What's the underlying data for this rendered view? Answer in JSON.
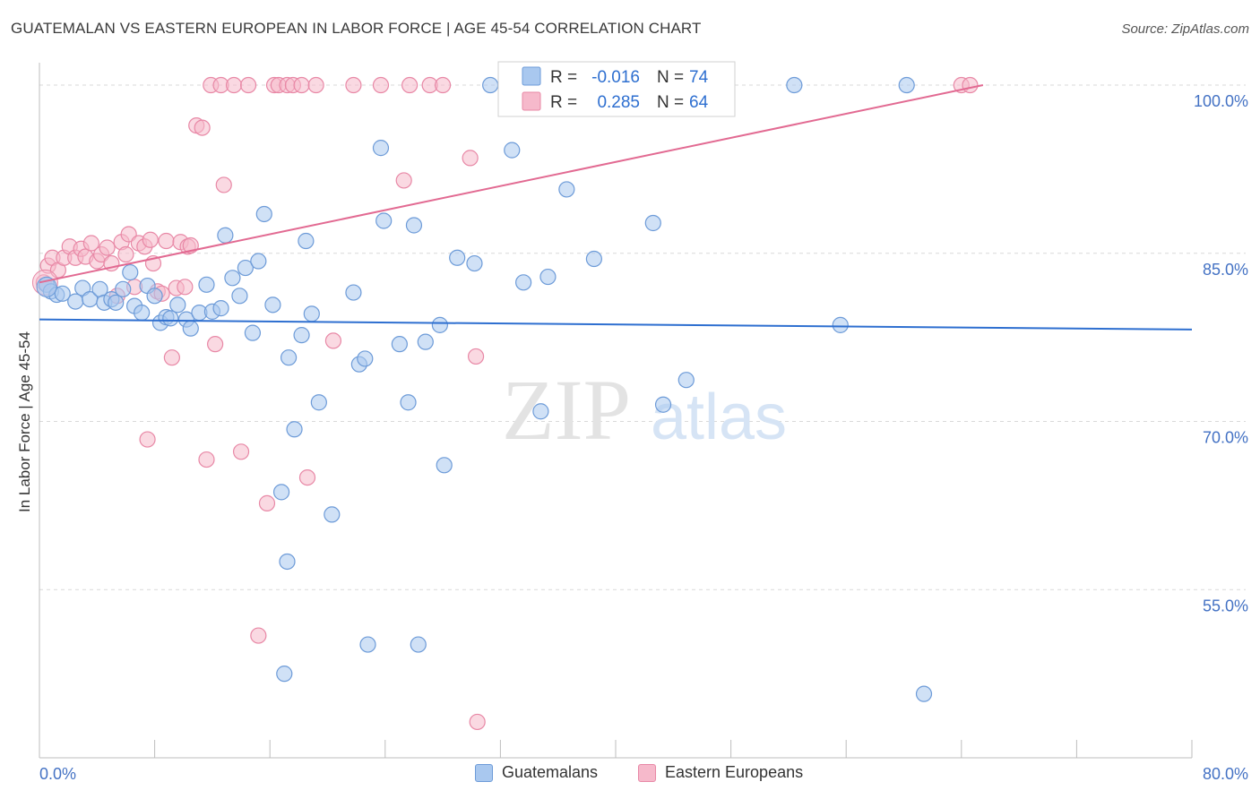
{
  "header": {
    "title": "GUATEMALAN VS EASTERN EUROPEAN IN LABOR FORCE | AGE 45-54 CORRELATION CHART",
    "source": "Source: ZipAtlas.com"
  },
  "watermark": {
    "zip": "ZIP",
    "atlas": "atlas"
  },
  "colors": {
    "blue_fill": "#a9c8ef",
    "blue_stroke": "#6d9bd8",
    "blue_line": "#2e6fd0",
    "pink_fill": "#f6b9cb",
    "pink_stroke": "#e888a6",
    "pink_line": "#e26a92",
    "axis_text": "#4472c4",
    "grid": "#d9d9d9"
  },
  "stats_legend": {
    "rows": [
      {
        "r_label": "R =",
        "r_value": "-0.016",
        "n_label": "N =",
        "n_value": "74"
      },
      {
        "r_label": "R =",
        "r_value": "0.285",
        "n_label": "N =",
        "n_value": "64"
      }
    ]
  },
  "chart_data": {
    "type": "scatter",
    "title": "GUATEMALAN VS EASTERN EUROPEAN IN LABOR FORCE | AGE 45-54 CORRELATION CHART",
    "xlabel": "",
    "ylabel": "In Labor Force | Age 45-54",
    "xlim": [
      0,
      80
    ],
    "ylim": [
      40,
      102
    ],
    "x_tick_labels": [
      {
        "value": 0,
        "label": "0.0%"
      },
      {
        "value": 80,
        "label": "80.0%"
      }
    ],
    "y_tick_labels": [
      {
        "value": 100,
        "label": "100.0%"
      },
      {
        "value": 85,
        "label": "85.0%"
      },
      {
        "value": 70,
        "label": "70.0%"
      },
      {
        "value": 55,
        "label": "55.0%"
      }
    ],
    "series": [
      {
        "name": "Guatemalans",
        "color": "blue",
        "trend": {
          "x": [
            0,
            80
          ],
          "y": [
            79.1,
            78.2
          ]
        },
        "points": [
          [
            0.5,
            82.2
          ],
          [
            0.8,
            81.6
          ],
          [
            1.2,
            81.3
          ],
          [
            1.6,
            81.4
          ],
          [
            2.5,
            80.7
          ],
          [
            3.0,
            81.9
          ],
          [
            3.5,
            80.9
          ],
          [
            4.2,
            81.8
          ],
          [
            4.5,
            80.6
          ],
          [
            5.0,
            80.9
          ],
          [
            5.3,
            80.6
          ],
          [
            5.8,
            81.8
          ],
          [
            6.3,
            83.3
          ],
          [
            6.6,
            80.3
          ],
          [
            7.1,
            79.7
          ],
          [
            7.5,
            82.1
          ],
          [
            8.0,
            81.2
          ],
          [
            8.4,
            78.8
          ],
          [
            8.8,
            79.3
          ],
          [
            9.1,
            79.2
          ],
          [
            9.6,
            80.4
          ],
          [
            10.2,
            79.1
          ],
          [
            10.5,
            78.3
          ],
          [
            11.1,
            79.7
          ],
          [
            11.6,
            82.2
          ],
          [
            12.0,
            79.8
          ],
          [
            12.6,
            80.1
          ],
          [
            12.9,
            86.6
          ],
          [
            13.4,
            82.8
          ],
          [
            13.9,
            81.2
          ],
          [
            14.3,
            83.7
          ],
          [
            14.8,
            77.9
          ],
          [
            15.2,
            84.3
          ],
          [
            15.6,
            88.5
          ],
          [
            16.2,
            80.4
          ],
          [
            16.8,
            63.7
          ],
          [
            17.3,
            75.7
          ],
          [
            17.7,
            69.3
          ],
          [
            18.2,
            77.7
          ],
          [
            18.5,
            86.1
          ],
          [
            18.9,
            79.6
          ],
          [
            19.4,
            71.7
          ],
          [
            20.3,
            61.7
          ],
          [
            21.8,
            81.5
          ],
          [
            22.2,
            75.1
          ],
          [
            22.6,
            75.6
          ],
          [
            22.8,
            50.1
          ],
          [
            23.7,
            94.4
          ],
          [
            23.9,
            87.9
          ],
          [
            25.0,
            76.9
          ],
          [
            25.6,
            71.7
          ],
          [
            26.0,
            87.5
          ],
          [
            26.3,
            50.1
          ],
          [
            26.8,
            77.1
          ],
          [
            27.8,
            78.6
          ],
          [
            28.1,
            66.1
          ],
          [
            29.0,
            84.6
          ],
          [
            30.2,
            84.1
          ],
          [
            31.3,
            100.0
          ],
          [
            32.8,
            94.2
          ],
          [
            33.6,
            82.4
          ],
          [
            34.8,
            70.9
          ],
          [
            35.3,
            82.9
          ],
          [
            36.6,
            90.7
          ],
          [
            38.5,
            84.5
          ],
          [
            42.6,
            87.7
          ],
          [
            43.3,
            71.5
          ],
          [
            44.9,
            73.7
          ],
          [
            52.4,
            100.0
          ],
          [
            55.6,
            78.6
          ],
          [
            60.2,
            100.0
          ],
          [
            61.4,
            45.7
          ],
          [
            17.0,
            47.5
          ],
          [
            17.2,
            57.5
          ]
        ]
      },
      {
        "name": "Eastern Europeans",
        "color": "pink",
        "trend": {
          "x": [
            0,
            65.5
          ],
          "y": [
            82.4,
            100.0
          ]
        },
        "points": [
          [
            0.3,
            82.4
          ],
          [
            0.6,
            83.9
          ],
          [
            0.9,
            84.6
          ],
          [
            1.3,
            83.5
          ],
          [
            1.7,
            84.6
          ],
          [
            2.1,
            85.6
          ],
          [
            2.5,
            84.6
          ],
          [
            2.9,
            85.4
          ],
          [
            3.2,
            84.7
          ],
          [
            3.6,
            85.9
          ],
          [
            4.0,
            84.3
          ],
          [
            4.3,
            84.9
          ],
          [
            4.7,
            85.5
          ],
          [
            5.0,
            84.1
          ],
          [
            5.4,
            81.2
          ],
          [
            5.7,
            86.0
          ],
          [
            6.0,
            84.9
          ],
          [
            6.2,
            86.7
          ],
          [
            6.6,
            82.0
          ],
          [
            6.9,
            85.9
          ],
          [
            7.3,
            85.6
          ],
          [
            7.7,
            86.2
          ],
          [
            7.9,
            84.1
          ],
          [
            8.2,
            81.6
          ],
          [
            8.5,
            81.4
          ],
          [
            8.8,
            86.1
          ],
          [
            9.2,
            75.7
          ],
          [
            9.5,
            81.9
          ],
          [
            9.8,
            86.0
          ],
          [
            10.1,
            82.0
          ],
          [
            10.3,
            85.6
          ],
          [
            10.5,
            85.7
          ],
          [
            10.9,
            96.4
          ],
          [
            11.3,
            96.2
          ],
          [
            11.6,
            66.6
          ],
          [
            11.9,
            100.0
          ],
          [
            12.2,
            76.9
          ],
          [
            12.6,
            100.0
          ],
          [
            12.8,
            91.1
          ],
          [
            13.5,
            100.0
          ],
          [
            14.0,
            67.3
          ],
          [
            14.5,
            100.0
          ],
          [
            15.2,
            50.9
          ],
          [
            15.8,
            62.7
          ],
          [
            16.3,
            100.0
          ],
          [
            16.6,
            100.0
          ],
          [
            17.2,
            100.0
          ],
          [
            17.6,
            100.0
          ],
          [
            18.2,
            100.0
          ],
          [
            18.6,
            65.0
          ],
          [
            19.2,
            100.0
          ],
          [
            20.4,
            77.2
          ],
          [
            21.8,
            100.0
          ],
          [
            23.7,
            100.0
          ],
          [
            25.3,
            91.5
          ],
          [
            25.7,
            100.0
          ],
          [
            27.1,
            100.0
          ],
          [
            28.0,
            100.0
          ],
          [
            29.9,
            93.5
          ],
          [
            30.3,
            75.8
          ],
          [
            30.4,
            43.2
          ],
          [
            64.0,
            100.0
          ],
          [
            64.6,
            100.0
          ],
          [
            7.5,
            68.4
          ]
        ]
      }
    ]
  },
  "bottom_legend": {
    "items": [
      {
        "label": "Guatemalans"
      },
      {
        "label": "Eastern Europeans"
      }
    ]
  }
}
